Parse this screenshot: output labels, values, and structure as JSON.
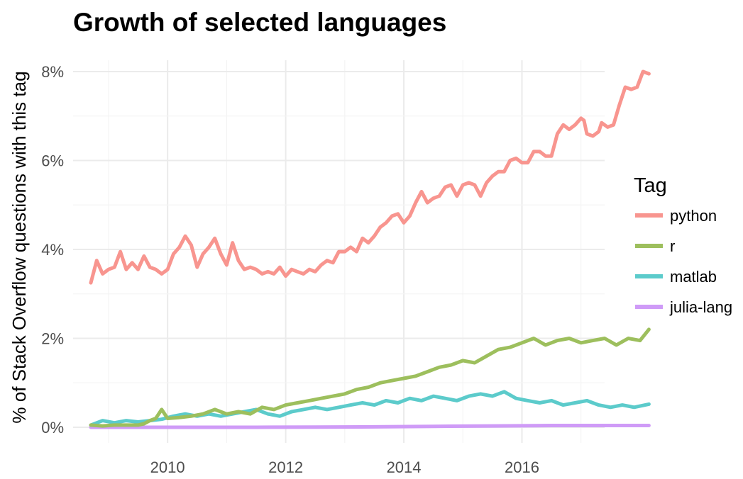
{
  "chart_data": {
    "type": "line",
    "title": "Growth of selected languages",
    "xlabel": "",
    "ylabel": "% of Stack Overflow questions with this tag",
    "xlim": [
      2008.4,
      2017.4
    ],
    "ylim": [
      -0.2,
      8.3
    ],
    "x_ticks": [
      2010,
      2012,
      2014,
      2016
    ],
    "x_tick_labels": [
      "2010",
      "2012",
      "2014",
      "2016"
    ],
    "y_ticks": [
      0,
      2,
      4,
      6,
      8
    ],
    "y_tick_labels": [
      "0%",
      "2%",
      "4%",
      "6%",
      "8%"
    ],
    "grid": true,
    "legend": {
      "title": "Tag",
      "position": "right",
      "entries": [
        "python",
        "r",
        "matlab",
        "julia-lang"
      ]
    },
    "series": [
      {
        "name": "python",
        "color": "#f8958f",
        "points": [
          [
            2008.7,
            3.25
          ],
          [
            2008.8,
            3.75
          ],
          [
            2008.9,
            3.45
          ],
          [
            2009.0,
            3.55
          ],
          [
            2009.1,
            3.6
          ],
          [
            2009.2,
            3.95
          ],
          [
            2009.3,
            3.55
          ],
          [
            2009.4,
            3.7
          ],
          [
            2009.5,
            3.55
          ],
          [
            2009.6,
            3.85
          ],
          [
            2009.7,
            3.6
          ],
          [
            2009.8,
            3.55
          ],
          [
            2009.9,
            3.45
          ],
          [
            2010.0,
            3.55
          ],
          [
            2010.1,
            3.9
          ],
          [
            2010.2,
            4.05
          ],
          [
            2010.3,
            4.3
          ],
          [
            2010.4,
            4.1
          ],
          [
            2010.5,
            3.6
          ],
          [
            2010.6,
            3.9
          ],
          [
            2010.7,
            4.05
          ],
          [
            2010.8,
            4.25
          ],
          [
            2010.9,
            3.9
          ],
          [
            2011.0,
            3.65
          ],
          [
            2011.1,
            4.15
          ],
          [
            2011.2,
            3.75
          ],
          [
            2011.3,
            3.55
          ],
          [
            2011.4,
            3.6
          ],
          [
            2011.5,
            3.55
          ],
          [
            2011.6,
            3.45
          ],
          [
            2011.7,
            3.5
          ],
          [
            2011.8,
            3.45
          ],
          [
            2011.9,
            3.6
          ],
          [
            2012.0,
            3.4
          ],
          [
            2012.1,
            3.55
          ],
          [
            2012.2,
            3.5
          ],
          [
            2012.3,
            3.45
          ],
          [
            2012.4,
            3.55
          ],
          [
            2012.5,
            3.5
          ],
          [
            2012.6,
            3.65
          ],
          [
            2012.7,
            3.75
          ],
          [
            2012.8,
            3.7
          ],
          [
            2012.9,
            3.95
          ],
          [
            2013.0,
            3.95
          ],
          [
            2013.1,
            4.05
          ],
          [
            2013.2,
            3.95
          ],
          [
            2013.3,
            4.25
          ],
          [
            2013.4,
            4.15
          ],
          [
            2013.5,
            4.3
          ],
          [
            2013.6,
            4.5
          ],
          [
            2013.7,
            4.6
          ],
          [
            2013.8,
            4.75
          ],
          [
            2013.9,
            4.8
          ],
          [
            2014.0,
            4.6
          ],
          [
            2014.1,
            4.75
          ],
          [
            2014.2,
            5.05
          ],
          [
            2014.3,
            5.3
          ],
          [
            2014.4,
            5.05
          ],
          [
            2014.5,
            5.15
          ],
          [
            2014.6,
            5.2
          ],
          [
            2014.7,
            5.4
          ],
          [
            2014.8,
            5.45
          ],
          [
            2014.9,
            5.2
          ],
          [
            2015.0,
            5.45
          ],
          [
            2015.1,
            5.5
          ],
          [
            2015.2,
            5.45
          ],
          [
            2015.3,
            5.2
          ],
          [
            2015.4,
            5.5
          ],
          [
            2015.5,
            5.65
          ],
          [
            2015.6,
            5.75
          ],
          [
            2015.7,
            5.75
          ],
          [
            2015.8,
            6.0
          ],
          [
            2015.9,
            6.05
          ],
          [
            2016.0,
            5.95
          ],
          [
            2016.1,
            5.95
          ],
          [
            2016.2,
            6.2
          ],
          [
            2016.3,
            6.2
          ],
          [
            2016.4,
            6.1
          ],
          [
            2016.5,
            6.1
          ],
          [
            2016.6,
            6.6
          ],
          [
            2016.7,
            6.8
          ],
          [
            2016.8,
            6.7
          ],
          [
            2016.9,
            6.8
          ],
          [
            2017.0,
            6.95
          ],
          [
            2017.05,
            6.9
          ],
          [
            2017.1,
            6.6
          ],
          [
            2017.2,
            6.55
          ],
          [
            2017.3,
            6.65
          ],
          [
            2017.35,
            6.85
          ],
          [
            2017.45,
            6.75
          ],
          [
            2017.55,
            6.8
          ],
          [
            2017.65,
            7.25
          ],
          [
            2017.75,
            7.65
          ],
          [
            2017.85,
            7.6
          ],
          [
            2017.95,
            7.65
          ],
          [
            2018.05,
            8.0
          ],
          [
            2018.15,
            7.95
          ]
        ]
      },
      {
        "name": "r",
        "color": "#9dbf5d",
        "points": [
          [
            2008.7,
            0.05
          ],
          [
            2008.9,
            0.03
          ],
          [
            2009.1,
            0.05
          ],
          [
            2009.3,
            0.05
          ],
          [
            2009.5,
            0.05
          ],
          [
            2009.6,
            0.08
          ],
          [
            2009.7,
            0.15
          ],
          [
            2009.8,
            0.2
          ],
          [
            2009.9,
            0.4
          ],
          [
            2010.0,
            0.2
          ],
          [
            2010.2,
            0.22
          ],
          [
            2010.4,
            0.25
          ],
          [
            2010.6,
            0.3
          ],
          [
            2010.8,
            0.4
          ],
          [
            2011.0,
            0.3
          ],
          [
            2011.2,
            0.35
          ],
          [
            2011.4,
            0.3
          ],
          [
            2011.6,
            0.45
          ],
          [
            2011.8,
            0.4
          ],
          [
            2012.0,
            0.5
          ],
          [
            2012.2,
            0.55
          ],
          [
            2012.4,
            0.6
          ],
          [
            2012.6,
            0.65
          ],
          [
            2012.8,
            0.7
          ],
          [
            2013.0,
            0.75
          ],
          [
            2013.2,
            0.85
          ],
          [
            2013.4,
            0.9
          ],
          [
            2013.6,
            1.0
          ],
          [
            2013.8,
            1.05
          ],
          [
            2014.0,
            1.1
          ],
          [
            2014.2,
            1.15
          ],
          [
            2014.4,
            1.25
          ],
          [
            2014.6,
            1.35
          ],
          [
            2014.8,
            1.4
          ],
          [
            2015.0,
            1.5
          ],
          [
            2015.2,
            1.45
          ],
          [
            2015.4,
            1.6
          ],
          [
            2015.6,
            1.75
          ],
          [
            2015.8,
            1.8
          ],
          [
            2016.0,
            1.9
          ],
          [
            2016.2,
            2.0
          ],
          [
            2016.4,
            1.85
          ],
          [
            2016.6,
            1.95
          ],
          [
            2016.8,
            2.0
          ],
          [
            2017.0,
            1.9
          ],
          [
            2017.2,
            1.95
          ],
          [
            2017.4,
            2.0
          ],
          [
            2017.6,
            1.85
          ],
          [
            2017.8,
            2.0
          ],
          [
            2018.0,
            1.95
          ],
          [
            2018.15,
            2.2
          ]
        ]
      },
      {
        "name": "matlab",
        "color": "#5ccbcb",
        "points": [
          [
            2008.7,
            0.05
          ],
          [
            2008.9,
            0.15
          ],
          [
            2009.1,
            0.1
          ],
          [
            2009.3,
            0.15
          ],
          [
            2009.5,
            0.12
          ],
          [
            2009.7,
            0.15
          ],
          [
            2009.9,
            0.18
          ],
          [
            2010.1,
            0.25
          ],
          [
            2010.3,
            0.3
          ],
          [
            2010.5,
            0.25
          ],
          [
            2010.7,
            0.3
          ],
          [
            2010.9,
            0.25
          ],
          [
            2011.1,
            0.3
          ],
          [
            2011.3,
            0.35
          ],
          [
            2011.5,
            0.4
          ],
          [
            2011.7,
            0.3
          ],
          [
            2011.9,
            0.25
          ],
          [
            2012.1,
            0.35
          ],
          [
            2012.3,
            0.4
          ],
          [
            2012.5,
            0.45
          ],
          [
            2012.7,
            0.4
          ],
          [
            2012.9,
            0.45
          ],
          [
            2013.1,
            0.5
          ],
          [
            2013.3,
            0.55
          ],
          [
            2013.5,
            0.5
          ],
          [
            2013.7,
            0.6
          ],
          [
            2013.9,
            0.55
          ],
          [
            2014.1,
            0.65
          ],
          [
            2014.3,
            0.6
          ],
          [
            2014.5,
            0.7
          ],
          [
            2014.7,
            0.65
          ],
          [
            2014.9,
            0.6
          ],
          [
            2015.1,
            0.7
          ],
          [
            2015.3,
            0.75
          ],
          [
            2015.5,
            0.7
          ],
          [
            2015.7,
            0.8
          ],
          [
            2015.9,
            0.65
          ],
          [
            2016.1,
            0.6
          ],
          [
            2016.3,
            0.55
          ],
          [
            2016.5,
            0.6
          ],
          [
            2016.7,
            0.5
          ],
          [
            2016.9,
            0.55
          ],
          [
            2017.1,
            0.6
          ],
          [
            2017.3,
            0.5
          ],
          [
            2017.5,
            0.45
          ],
          [
            2017.7,
            0.5
          ],
          [
            2017.9,
            0.45
          ],
          [
            2018.15,
            0.52
          ]
        ]
      },
      {
        "name": "julia-lang",
        "color": "#cf9bf7",
        "points": [
          [
            2008.7,
            0.0
          ],
          [
            2009.5,
            0.0
          ],
          [
            2010.5,
            0.0
          ],
          [
            2011.5,
            0.0
          ],
          [
            2012.5,
            0.005
          ],
          [
            2013.5,
            0.01
          ],
          [
            2014.5,
            0.02
          ],
          [
            2015.5,
            0.03
          ],
          [
            2016.5,
            0.04
          ],
          [
            2017.5,
            0.04
          ],
          [
            2018.15,
            0.04
          ]
        ]
      }
    ]
  }
}
